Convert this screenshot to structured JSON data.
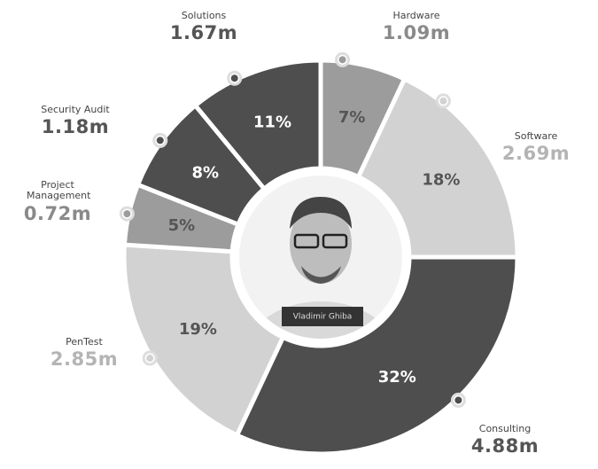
{
  "chart_data": {
    "type": "donut",
    "categories": [
      "Hardware",
      "Software",
      "Consulting",
      "PenTest",
      "Project Management",
      "Security Audit",
      "Solutions"
    ],
    "values": [
      7,
      18,
      32,
      19,
      5,
      8,
      11
    ],
    "value_labels": [
      "7%",
      "18%",
      "32%",
      "19%",
      "5%",
      "8%",
      "11%"
    ],
    "amounts": [
      "1.09m",
      "2.69m",
      "4.88m",
      "2.85m",
      "0.72m",
      "1.18m",
      "1.67m"
    ],
    "colors": [
      "#9c9c9c",
      "#d2d2d2",
      "#4e4e4e",
      "#d2d2d2",
      "#9c9c9c",
      "#4e4e4e",
      "#4e4e4e"
    ],
    "center_label": "Vladimir Ghiba"
  }
}
